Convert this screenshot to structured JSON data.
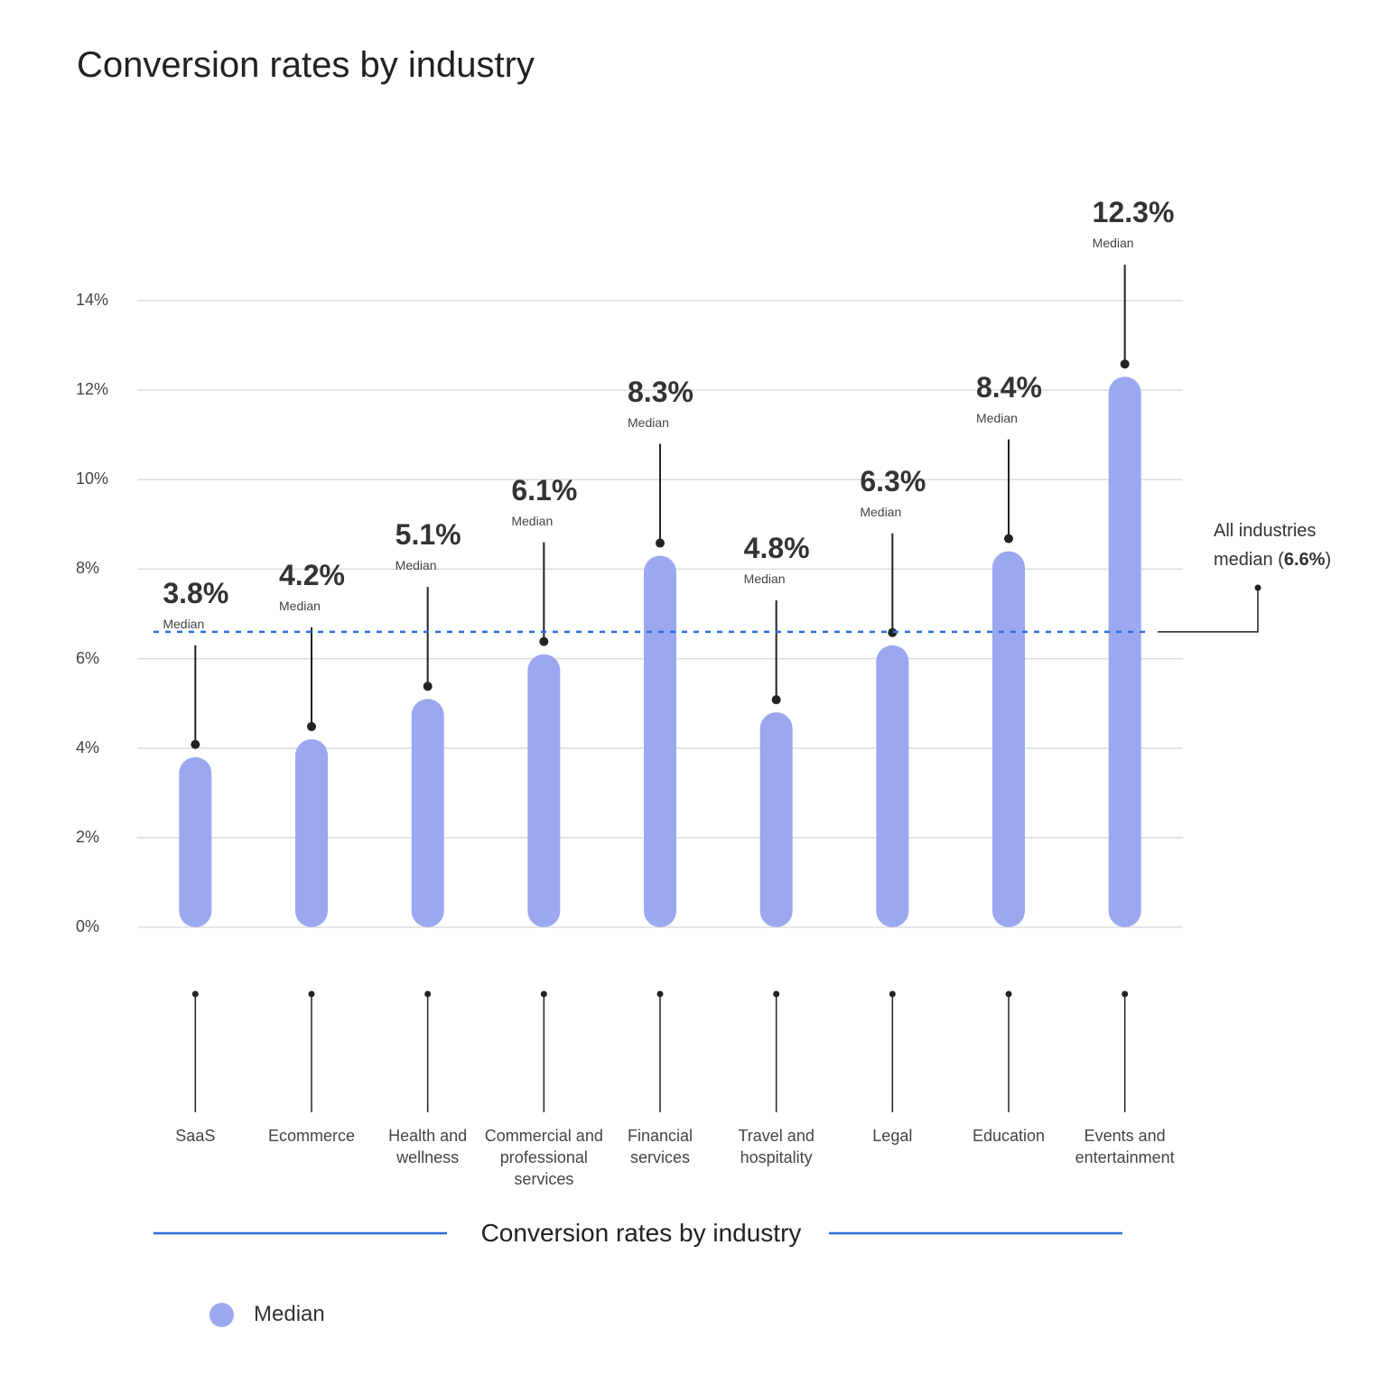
{
  "chart_data": {
    "type": "bar",
    "title": "Conversion rates by industry",
    "x_title": "Conversion rates by industry",
    "categories": [
      "SaaS",
      "Ecommerce",
      "Health and wellness",
      "Commercial and professional services",
      "Financial services",
      "Travel and hospitality",
      "Legal",
      "Education",
      "Events and entertainment"
    ],
    "series": [
      {
        "name": "Median",
        "color": "#9ba8f0",
        "values": [
          3.8,
          4.2,
          5.1,
          6.1,
          8.3,
          4.8,
          6.3,
          8.4,
          12.3
        ],
        "value_labels": [
          "3.8%",
          "4.2%",
          "5.1%",
          "6.1%",
          "8.3%",
          "4.8%",
          "6.3%",
          "8.4%",
          "12.3%"
        ]
      }
    ],
    "ylim": [
      0,
      14
    ],
    "yticks": [
      {
        "value": 0,
        "label": "0%"
      },
      {
        "value": 2,
        "label": "2%"
      },
      {
        "value": 4,
        "label": "4%"
      },
      {
        "value": 6,
        "label": "6%"
      },
      {
        "value": 8,
        "label": "8%"
      },
      {
        "value": 10,
        "label": "10%"
      },
      {
        "value": 12,
        "label": "12%"
      },
      {
        "value": 14,
        "label": "14%"
      }
    ],
    "grid": true,
    "reference_line": {
      "value": 6.6,
      "label": "All industries median",
      "value_label": "6.6%",
      "color": "#2a6fdb"
    },
    "legend": "bottom-left"
  }
}
